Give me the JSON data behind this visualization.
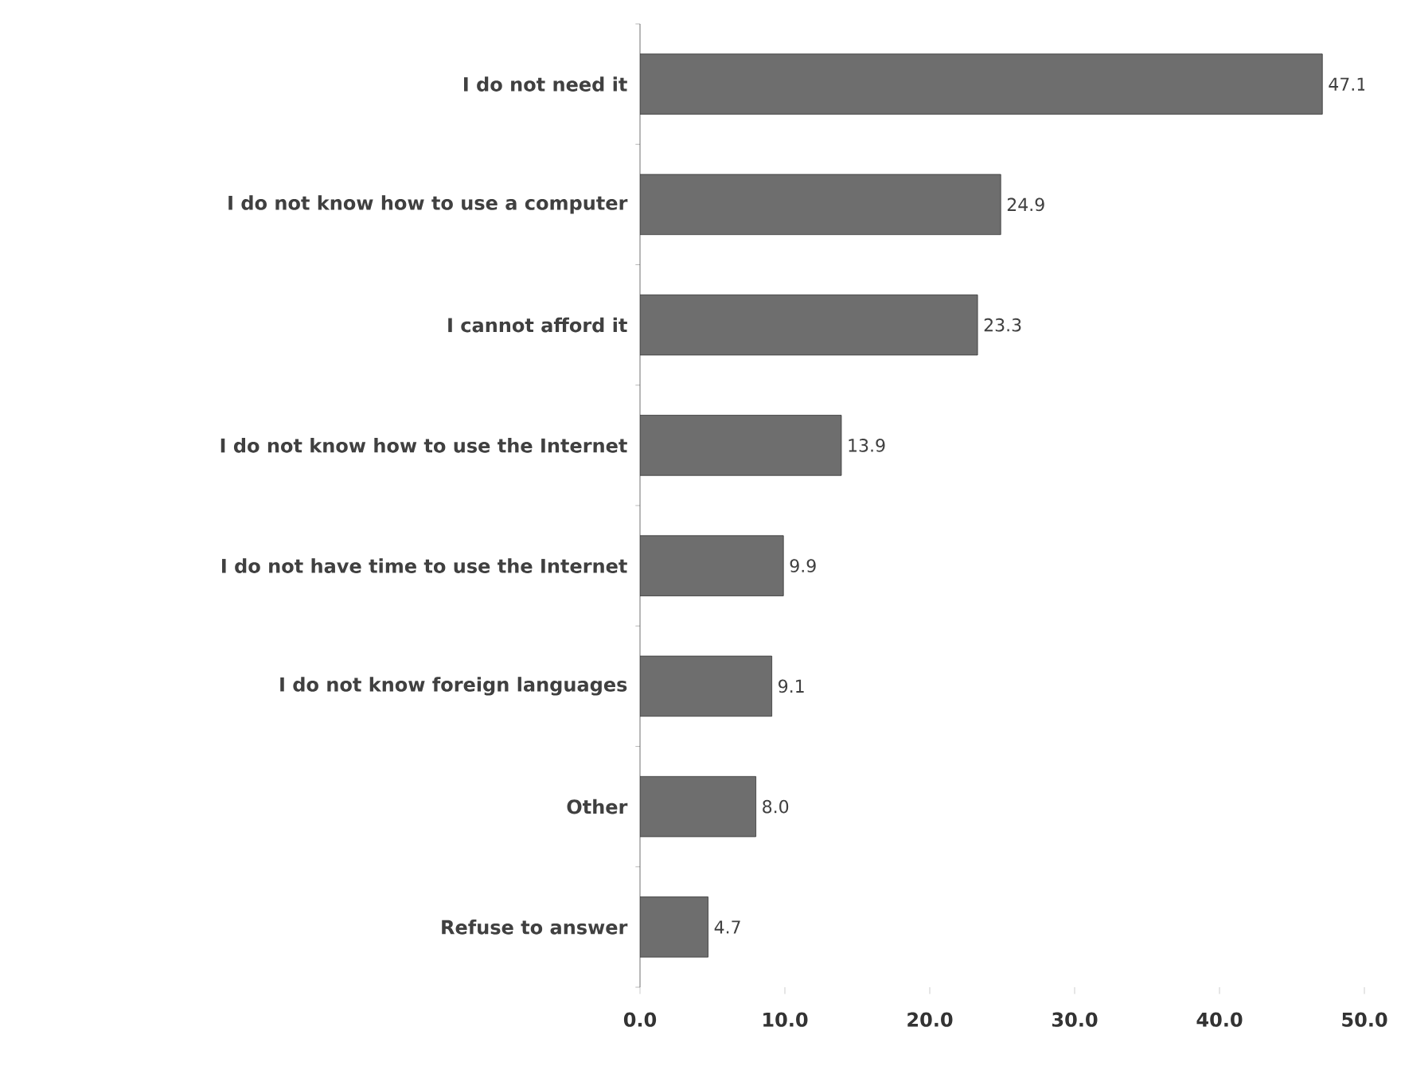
{
  "chart_data": {
    "type": "bar",
    "orientation": "horizontal",
    "categories": [
      "I do not need it",
      "I do not know how to use a computer",
      "I cannot afford it",
      "I do not know how to use the Internet",
      "I do not have time to use the Internet",
      "I do not know foreign languages",
      "Other",
      "Refuse to answer"
    ],
    "values": [
      47.1,
      24.9,
      23.3,
      13.9,
      9.9,
      9.1,
      8.0,
      4.7
    ],
    "value_labels": [
      "47.1",
      "24.9",
      "23.3",
      "13.9",
      "9.9",
      "9.1",
      "8.0",
      "4.7"
    ],
    "color": "#6e6e6e",
    "grid": false,
    "xlim": [
      0,
      50
    ],
    "xticks": [
      {
        "value": 0,
        "label": "0.0"
      },
      {
        "value": 10,
        "label": "10.0"
      },
      {
        "value": 20,
        "label": "20.0"
      },
      {
        "value": 30,
        "label": "30.0"
      },
      {
        "value": 40,
        "label": "40.0"
      },
      {
        "value": 50,
        "label": "50.0"
      }
    ]
  }
}
